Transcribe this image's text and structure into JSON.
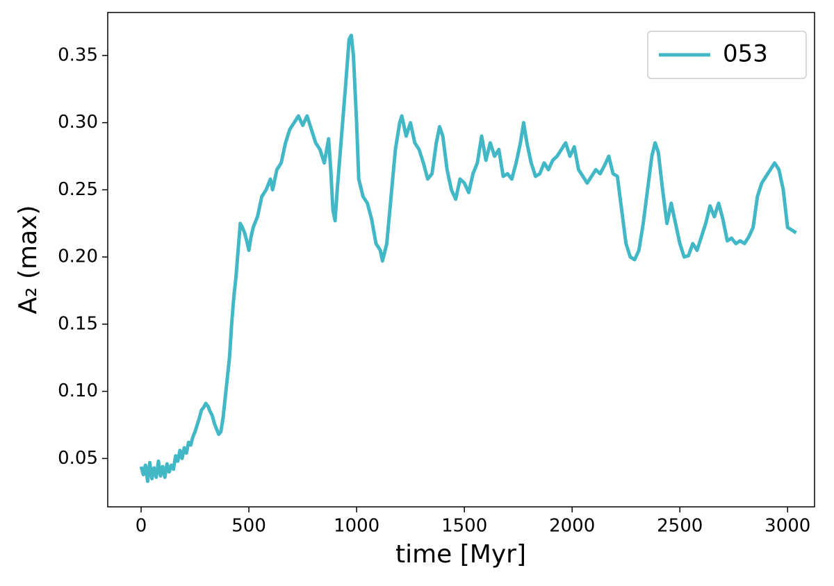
{
  "chart_data": {
    "type": "line",
    "xlabel": "time [Myr]",
    "ylabel": "A₂ (max)",
    "x": [
      0,
      10,
      20,
      30,
      40,
      50,
      60,
      70,
      80,
      90,
      100,
      110,
      120,
      130,
      140,
      150,
      160,
      170,
      180,
      190,
      200,
      210,
      220,
      230,
      240,
      250,
      260,
      270,
      280,
      290,
      300,
      310,
      320,
      330,
      340,
      350,
      360,
      370,
      380,
      390,
      400,
      410,
      420,
      430,
      440,
      450,
      460,
      470,
      480,
      490,
      500,
      510,
      520,
      540,
      560,
      580,
      600,
      610,
      630,
      650,
      670,
      690,
      710,
      730,
      750,
      770,
      790,
      810,
      830,
      850,
      870,
      880,
      890,
      900,
      910,
      930,
      950,
      965,
      975,
      985,
      1000,
      1010,
      1030,
      1050,
      1070,
      1090,
      1110,
      1120,
      1140,
      1160,
      1180,
      1200,
      1210,
      1230,
      1250,
      1270,
      1290,
      1310,
      1330,
      1350,
      1370,
      1385,
      1400,
      1420,
      1440,
      1460,
      1480,
      1500,
      1520,
      1540,
      1560,
      1580,
      1600,
      1620,
      1640,
      1660,
      1680,
      1700,
      1720,
      1740,
      1760,
      1775,
      1790,
      1810,
      1830,
      1850,
      1870,
      1890,
      1910,
      1930,
      1950,
      1970,
      1990,
      2010,
      2030,
      2050,
      2070,
      2090,
      2110,
      2130,
      2150,
      2170,
      2190,
      2210,
      2230,
      2250,
      2270,
      2290,
      2310,
      2330,
      2350,
      2370,
      2385,
      2400,
      2420,
      2440,
      2460,
      2480,
      2500,
      2520,
      2540,
      2560,
      2580,
      2600,
      2620,
      2640,
      2660,
      2680,
      2700,
      2720,
      2740,
      2760,
      2780,
      2800,
      2820,
      2840,
      2860,
      2880,
      2900,
      2920,
      2940,
      2960,
      2980,
      3000,
      3020,
      3040
    ],
    "series": [
      {
        "name": "053",
        "color": "#42b7c6",
        "values": [
          0.044,
          0.038,
          0.045,
          0.033,
          0.047,
          0.035,
          0.043,
          0.036,
          0.048,
          0.037,
          0.044,
          0.036,
          0.046,
          0.04,
          0.045,
          0.042,
          0.052,
          0.048,
          0.056,
          0.05,
          0.058,
          0.054,
          0.062,
          0.06,
          0.066,
          0.07,
          0.075,
          0.08,
          0.086,
          0.088,
          0.091,
          0.089,
          0.085,
          0.082,
          0.076,
          0.072,
          0.068,
          0.07,
          0.08,
          0.095,
          0.11,
          0.125,
          0.15,
          0.17,
          0.185,
          0.205,
          0.225,
          0.222,
          0.218,
          0.212,
          0.205,
          0.215,
          0.222,
          0.23,
          0.245,
          0.25,
          0.258,
          0.25,
          0.265,
          0.27,
          0.285,
          0.295,
          0.3,
          0.305,
          0.298,
          0.305,
          0.295,
          0.285,
          0.28,
          0.27,
          0.288,
          0.265,
          0.235,
          0.227,
          0.25,
          0.29,
          0.33,
          0.362,
          0.365,
          0.35,
          0.3,
          0.258,
          0.245,
          0.24,
          0.228,
          0.21,
          0.205,
          0.197,
          0.21,
          0.245,
          0.28,
          0.3,
          0.305,
          0.29,
          0.3,
          0.285,
          0.28,
          0.27,
          0.258,
          0.262,
          0.285,
          0.297,
          0.29,
          0.265,
          0.25,
          0.243,
          0.258,
          0.255,
          0.248,
          0.262,
          0.27,
          0.29,
          0.272,
          0.285,
          0.275,
          0.28,
          0.26,
          0.262,
          0.258,
          0.27,
          0.285,
          0.3,
          0.285,
          0.27,
          0.26,
          0.262,
          0.27,
          0.265,
          0.272,
          0.275,
          0.28,
          0.285,
          0.275,
          0.282,
          0.265,
          0.26,
          0.255,
          0.26,
          0.265,
          0.262,
          0.268,
          0.275,
          0.262,
          0.26,
          0.235,
          0.21,
          0.2,
          0.198,
          0.205,
          0.225,
          0.25,
          0.275,
          0.285,
          0.278,
          0.25,
          0.225,
          0.24,
          0.225,
          0.21,
          0.2,
          0.201,
          0.21,
          0.205,
          0.215,
          0.225,
          0.238,
          0.23,
          0.24,
          0.228,
          0.212,
          0.214,
          0.21,
          0.212,
          0.21,
          0.215,
          0.222,
          0.245,
          0.255,
          0.26,
          0.265,
          0.27,
          0.265,
          0.25,
          0.222,
          0.22,
          0.218
        ]
      }
    ],
    "xlim": [
      -155,
      3125
    ],
    "ylim": [
      0.014,
      0.382
    ],
    "xticks": [
      0,
      500,
      1000,
      1500,
      2000,
      2500,
      3000
    ],
    "yticks": [
      0.05,
      {
        "value": 0.1,
        "label": "0.10"
      },
      0.15,
      {
        "value": 0.2,
        "label": "0.20"
      },
      0.25,
      {
        "value": 0.3,
        "label": "0.30"
      },
      0.35
    ],
    "legend": "upper right"
  }
}
